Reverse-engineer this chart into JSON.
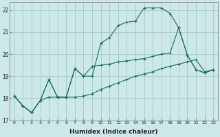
{
  "xlabel": "Humidex (Indice chaleur)",
  "ylabel": "",
  "xlim": [
    -0.5,
    23.5
  ],
  "ylim": [
    17,
    22.35
  ],
  "yticks": [
    17,
    18,
    19,
    20,
    21,
    22
  ],
  "xticks": [
    0,
    1,
    2,
    3,
    4,
    5,
    6,
    7,
    8,
    9,
    10,
    11,
    12,
    13,
    14,
    15,
    16,
    17,
    18,
    19,
    20,
    21,
    22,
    23
  ],
  "bg_color": "#cce8e8",
  "grid_color": "#aacccc",
  "line_color": "#1a6b5a",
  "line1_x": [
    0,
    1,
    2,
    3,
    4,
    5,
    6,
    7,
    8,
    9,
    10,
    11,
    12,
    13,
    14,
    15,
    16,
    17,
    18,
    19,
    20,
    21,
    22,
    23
  ],
  "line1_y": [
    18.1,
    17.65,
    17.35,
    17.9,
    18.85,
    18.05,
    18.05,
    19.35,
    19.0,
    19.0,
    20.5,
    20.75,
    21.3,
    21.45,
    21.5,
    22.1,
    22.1,
    22.1,
    21.85,
    21.2,
    19.95,
    19.3,
    19.15,
    19.3
  ],
  "line2_x": [
    0,
    1,
    2,
    3,
    4,
    5,
    6,
    7,
    8,
    9,
    10,
    11,
    12,
    13,
    14,
    15,
    16,
    17,
    18,
    19,
    20,
    21,
    22,
    23
  ],
  "line2_y": [
    18.1,
    17.65,
    17.35,
    17.9,
    18.05,
    18.05,
    18.05,
    18.05,
    18.1,
    18.2,
    18.4,
    18.55,
    18.7,
    18.85,
    19.0,
    19.1,
    19.2,
    19.35,
    19.45,
    19.55,
    19.65,
    19.75,
    19.2,
    19.3
  ],
  "line3_x": [
    0,
    1,
    2,
    3,
    4,
    5,
    6,
    7,
    8,
    9,
    10,
    11,
    12,
    13,
    14,
    15,
    16,
    17,
    18,
    19,
    20,
    21,
    22,
    23
  ],
  "line3_y": [
    18.1,
    17.65,
    17.35,
    17.9,
    18.85,
    18.05,
    18.05,
    19.35,
    19.0,
    19.45,
    19.5,
    19.55,
    19.65,
    19.7,
    19.75,
    19.8,
    19.9,
    20.0,
    20.05,
    21.2,
    19.95,
    19.3,
    19.15,
    19.3
  ]
}
